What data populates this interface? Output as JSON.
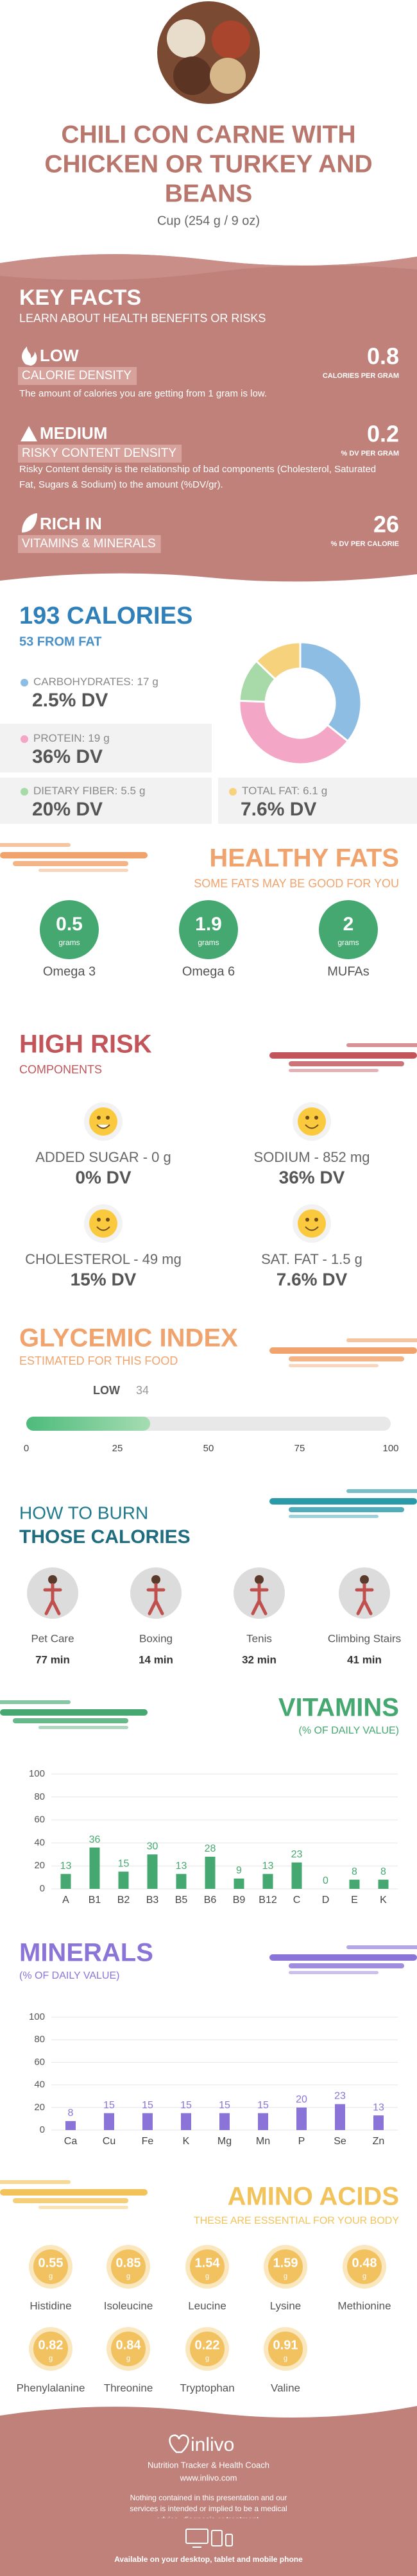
{
  "header": {
    "title_lines": [
      "CHILI CON CARNE WITH",
      "CHICKEN OR TURKEY AND",
      "BEANS"
    ],
    "serving": "Cup (254 g / 9 oz)"
  },
  "key_facts": {
    "title": "KEY FACTS",
    "subtitle": "LEARN ABOUT HEALTH BENEFITS OR RISKS",
    "items": [
      {
        "level": "LOW",
        "label": "CALORIE DENSITY",
        "value": 0.8,
        "unit": "CALORIES PER GRAM",
        "description": "The amount of calories you are getting from 1 gram is low."
      },
      {
        "level": "MEDIUM",
        "label": "RISKY CONTENT DENSITY",
        "value": 0.2,
        "unit": "% DV PER GRAM",
        "description": "Risky Content density is the relationship of bad components (Cholesterol, Saturated Fat, Sugars & Sodium) to the amount (%DV/gr)."
      },
      {
        "level": "RICH IN",
        "label": "VITAMINS & MINERALS",
        "value": 26,
        "unit": "% DV PER CALORIE"
      }
    ]
  },
  "calories": {
    "title": "193 CALORIES",
    "subtitle": "53 FROM FAT",
    "nutrients": [
      {
        "name": "CARBOHYDRATES:",
        "grams": 17,
        "unit": "g",
        "dv": "2.5% DV",
        "color": "#8dbde3"
      },
      {
        "name": "PROTEIN:",
        "grams": 19,
        "unit": "g",
        "dv": "36% DV",
        "color": "#f4a6c6"
      },
      {
        "name": "DIETARY FIBER:",
        "grams": 5.5,
        "unit": "g",
        "dv": "20% DV",
        "color": "#a7d9a9"
      },
      {
        "name": "TOTAL FAT:",
        "grams": 6.1,
        "unit": "g",
        "dv": "7.6% DV",
        "color": "#f6d27c"
      }
    ]
  },
  "healthy_fats": {
    "title": "HEALTHY FATS",
    "subtitle": "SOME FATS MAY BE GOOD FOR YOU",
    "unit": "grams",
    "items": [
      {
        "name": "Omega 3",
        "value": 0.5
      },
      {
        "name": "Omega 6",
        "value": 1.9
      },
      {
        "name": "MUFAs",
        "value": 2
      }
    ]
  },
  "high_risk": {
    "title": "HIGH RISK",
    "subtitle": "COMPONENTS",
    "items": [
      {
        "name": "ADDED SUGAR - 0 g",
        "dv": "0% DV"
      },
      {
        "name": "SODIUM - 852 mg",
        "dv": "36% DV"
      },
      {
        "name": "CHOLESTEROL - 49 mg",
        "dv": "15% DV"
      },
      {
        "name": "SAT. FAT - 1.5 g",
        "dv": "7.6% DV"
      }
    ]
  },
  "glycemic_index": {
    "title": "GLYCEMIC INDEX",
    "subtitle": "ESTIMATED FOR THIS FOOD",
    "level": "LOW",
    "value": 34,
    "xlim": [
      0,
      100
    ],
    "xticks": [
      0,
      25,
      50,
      75,
      100
    ]
  },
  "burn": {
    "title_lines": [
      "HOW TO BURN",
      "THOSE CALORIES"
    ],
    "activities": [
      {
        "name": "Pet Care",
        "time": "77 min"
      },
      {
        "name": "Boxing",
        "time": "14 min"
      },
      {
        "name": "Tenis",
        "time": "32 min"
      },
      {
        "name": "Climbing Stairs",
        "time": "41 min"
      }
    ]
  },
  "vitamins": {
    "type": "bar",
    "title": "VITAMINS",
    "subtitle": "(% OF DAILY VALUE)",
    "color": "#45a870",
    "categories": [
      "A",
      "B1",
      "B2",
      "B3",
      "B5",
      "B6",
      "B9",
      "B12",
      "C",
      "D",
      "E",
      "K"
    ],
    "values": [
      13,
      36,
      15,
      30,
      13,
      28,
      9,
      13,
      23,
      0,
      8,
      8
    ],
    "ylim": [
      0,
      100
    ],
    "yticks": [
      0,
      20,
      40,
      60,
      80,
      100
    ]
  },
  "minerals": {
    "type": "bar",
    "title": "MINERALS",
    "subtitle": "(% OF DAILY VALUE)",
    "color": "#8b74d8",
    "categories": [
      "Ca",
      "Cu",
      "Fe",
      "K",
      "Mg",
      "Mn",
      "P",
      "Se",
      "Zn"
    ],
    "values": [
      8,
      15,
      15,
      15,
      15,
      15,
      20,
      23,
      13
    ],
    "ylim": [
      0,
      100
    ],
    "yticks": [
      0,
      20,
      40,
      60,
      80,
      100
    ]
  },
  "amino_acids": {
    "title": "AMINO ACIDS",
    "subtitle": "THESE ARE ESSENTIAL FOR YOUR BODY",
    "unit": "g",
    "items": [
      {
        "name": "Histidine",
        "value": 0.55
      },
      {
        "name": "Isoleucine",
        "value": 0.85
      },
      {
        "name": "Leucine",
        "value": 1.54
      },
      {
        "name": "Lysine",
        "value": 1.59
      },
      {
        "name": "Methionine",
        "value": 0.48
      },
      {
        "name": "Phenylalanine",
        "value": 0.82
      },
      {
        "name": "Threonine",
        "value": 0.84
      },
      {
        "name": "Tryptophan",
        "value": 0.22
      },
      {
        "name": "Valine",
        "value": 0.91
      }
    ]
  },
  "footer": {
    "brand": "inlivo",
    "tagline": "Nutrition Tracker & Health Coach",
    "url": "www.inlivo.com",
    "disclaimer": "Nothing contained in this presentation and our services is intended or implied to be a medical advice, diagnosis or treatment.",
    "availability": "Available on your desktop, tablet and mobile phone"
  }
}
